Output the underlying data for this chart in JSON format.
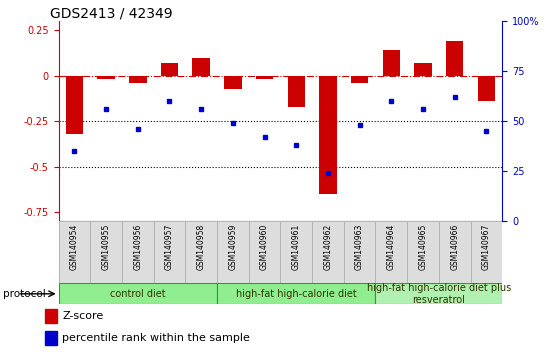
{
  "title": "GDS2413 / 42349",
  "samples": [
    "GSM140954",
    "GSM140955",
    "GSM140956",
    "GSM140957",
    "GSM140958",
    "GSM140959",
    "GSM140960",
    "GSM140961",
    "GSM140962",
    "GSM140963",
    "GSM140964",
    "GSM140965",
    "GSM140966",
    "GSM140967"
  ],
  "zscore": [
    -0.32,
    -0.02,
    -0.04,
    0.07,
    0.1,
    -0.07,
    -0.02,
    -0.17,
    -0.65,
    -0.04,
    0.14,
    0.07,
    0.19,
    -0.14
  ],
  "percentile": [
    35,
    56,
    46,
    60,
    56,
    49,
    42,
    38,
    24,
    48,
    60,
    56,
    62,
    45
  ],
  "ylim_left": [
    -0.8,
    0.3
  ],
  "ylim_right": [
    0,
    100
  ],
  "yticks_left": [
    -0.75,
    -0.5,
    -0.25,
    0,
    0.25
  ],
  "ytick_labels_left": [
    "-0.75",
    "-0.5",
    "-0.25",
    "0",
    "0.25"
  ],
  "yticks_right": [
    0,
    25,
    50,
    75,
    100
  ],
  "ytick_labels_right": [
    "0",
    "25",
    "50",
    "75",
    "100%"
  ],
  "bar_color": "#CC0000",
  "dot_color": "#0000CC",
  "hline0_color": "#CC0000",
  "hline0_style": "-.",
  "dotline_color": "black",
  "dotline_style": ":",
  "group_starts": [
    0,
    5,
    10
  ],
  "group_ends": [
    4,
    9,
    13
  ],
  "group_labels": [
    "control diet",
    "high-fat high-calorie diet",
    "high-fat high-calorie diet plus\nresveratrol"
  ],
  "group_colors": [
    "#90EE90",
    "#90EE90",
    "#b0f0b0"
  ],
  "group_border_color": "#339933",
  "protocol_label": "protocol",
  "legend": [
    {
      "label": "Z-score",
      "color": "#CC0000"
    },
    {
      "label": "percentile rank within the sample",
      "color": "#0000CC"
    }
  ],
  "bg_color": "#ffffff",
  "sample_box_color": "#dddddd",
  "sample_box_border": "#aaaaaa",
  "tick_fontsize": 7,
  "sample_fontsize": 5.5,
  "group_fontsize": 7,
  "legend_fontsize": 8,
  "title_fontsize": 10
}
